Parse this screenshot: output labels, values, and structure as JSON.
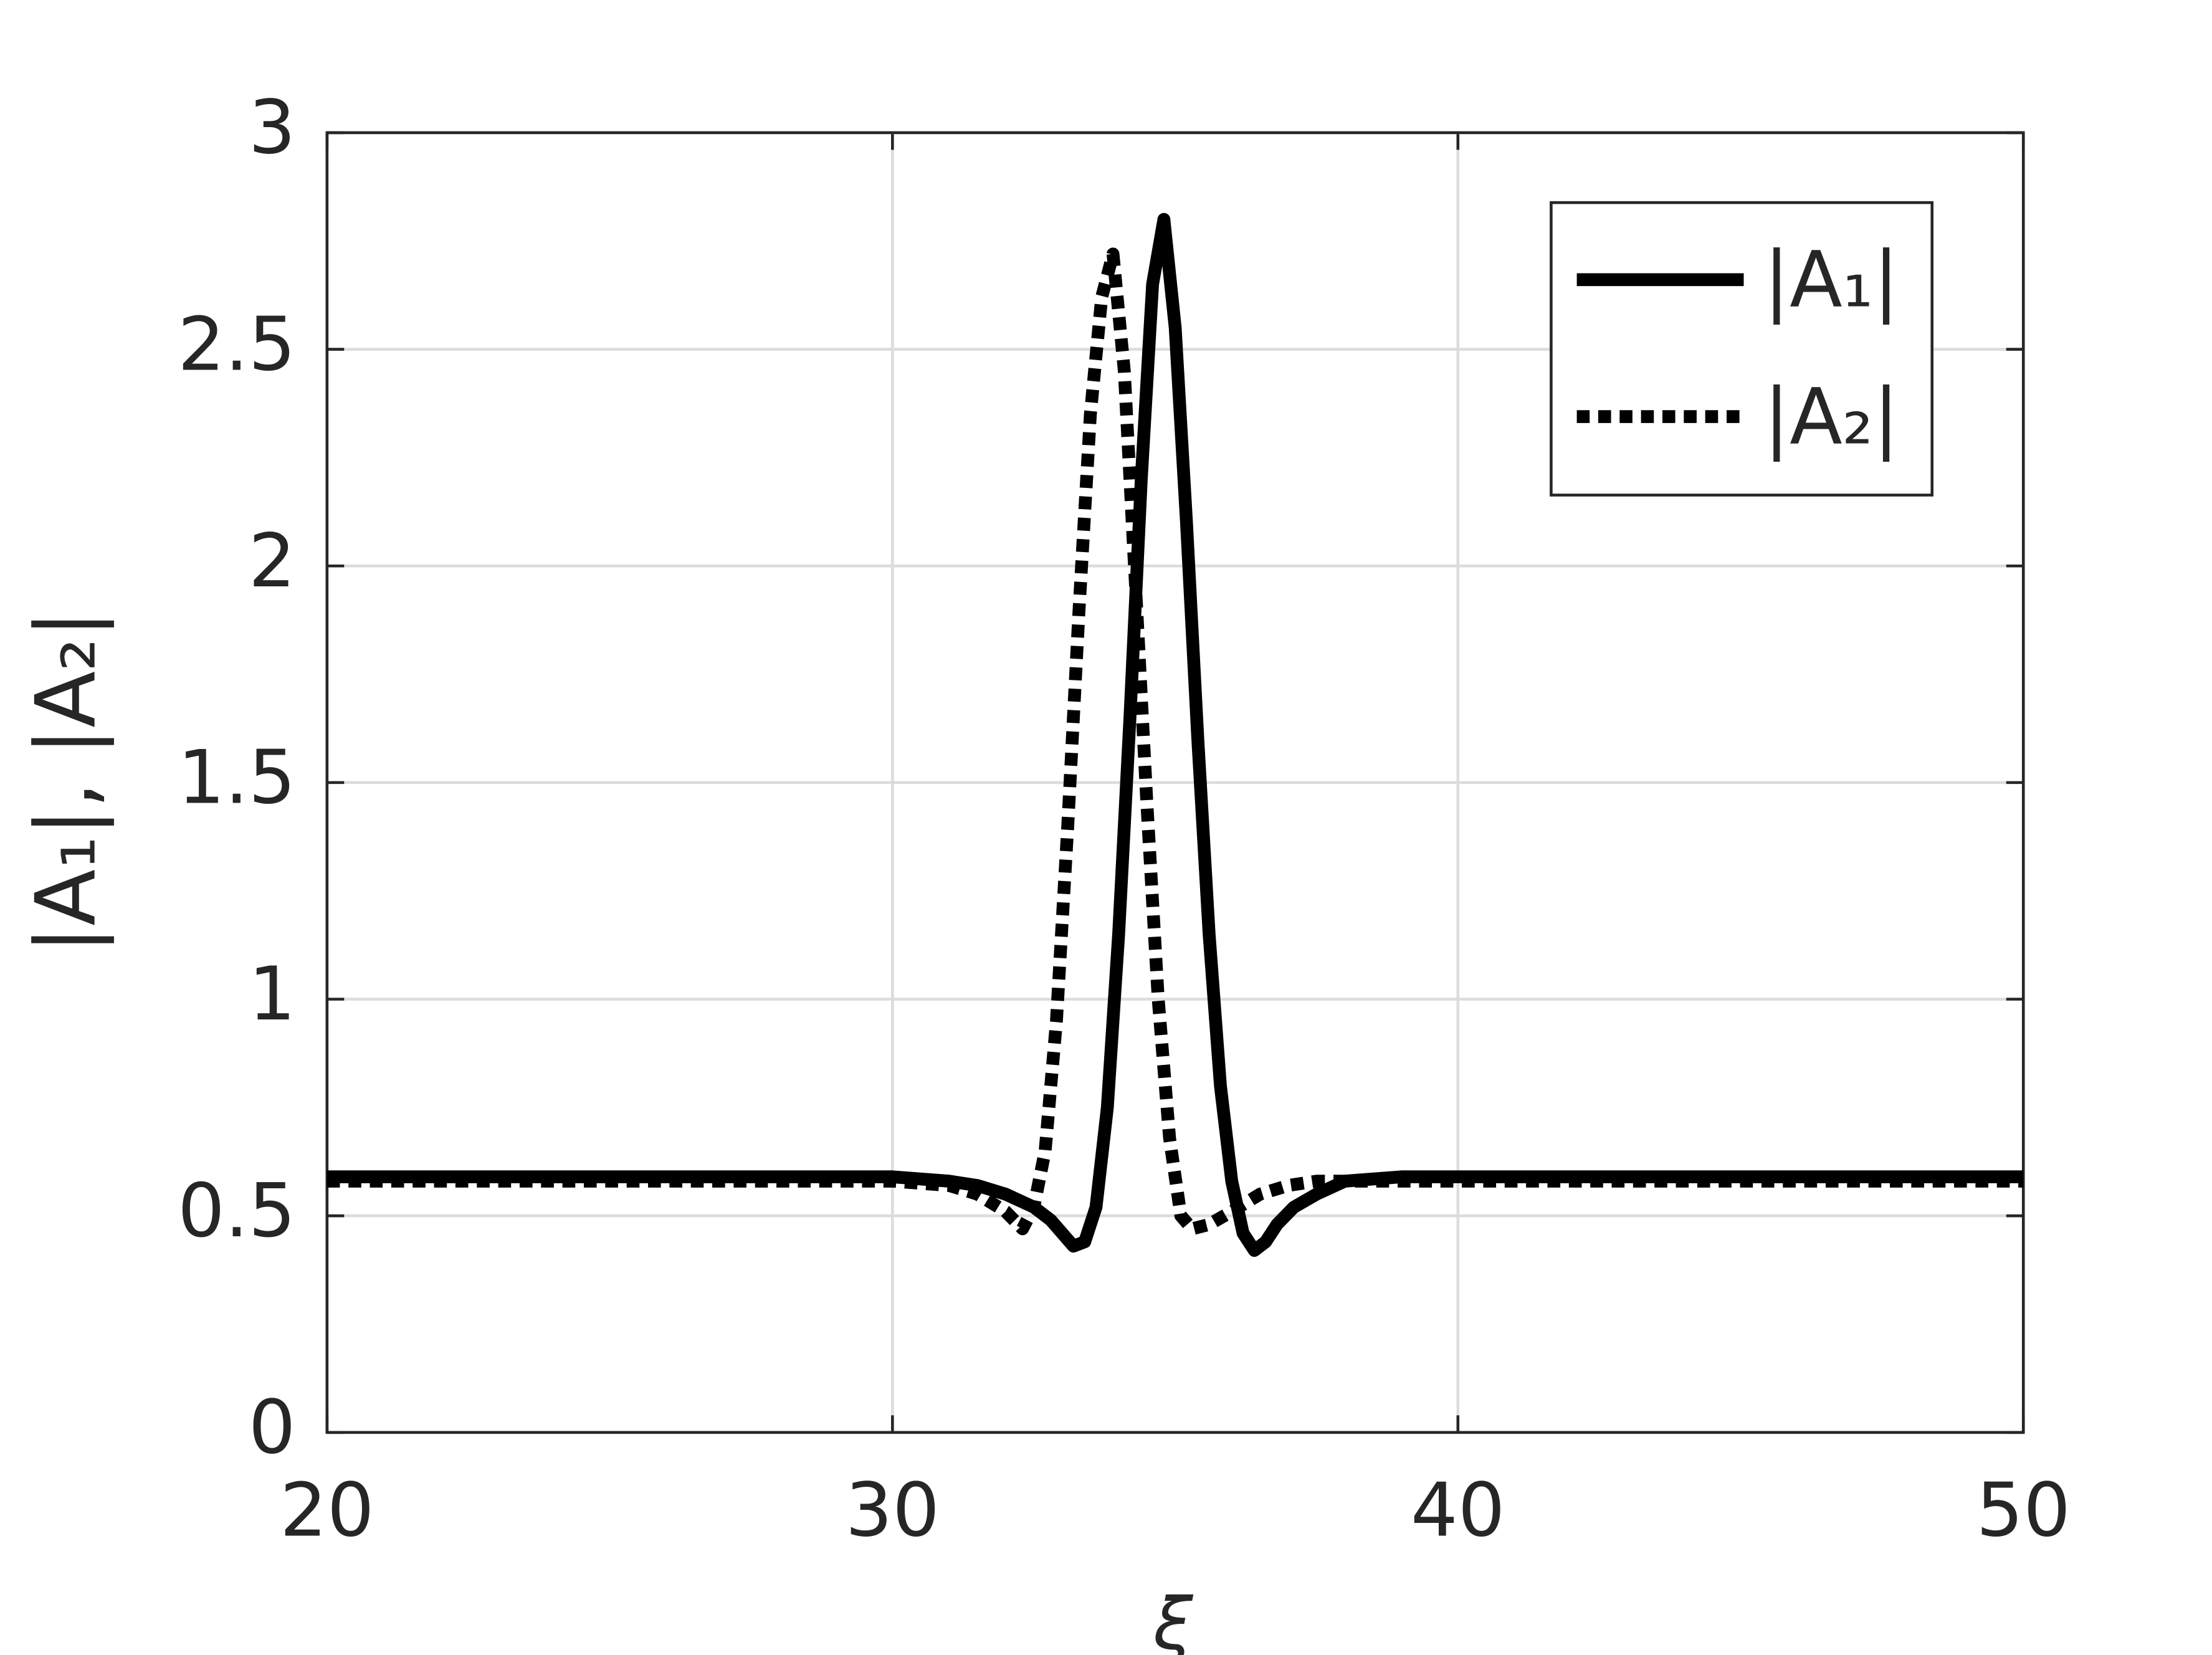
{
  "chart_data": {
    "type": "line",
    "xlabel": "ξ",
    "ylabel": "|A₁|, |A₂|",
    "xlim": [
      20,
      50
    ],
    "ylim": [
      0,
      3
    ],
    "xticks": [
      20,
      30,
      40,
      50
    ],
    "yticks": [
      0,
      0.5,
      1,
      1.5,
      2,
      2.5,
      3
    ],
    "grid": true,
    "legend": "upper right",
    "series": [
      {
        "name": "|A₁|",
        "color": "#000000",
        "dash": "solid",
        "x": [
          20,
          25,
          30,
          31,
          31.5,
          32,
          32.5,
          32.8,
          33,
          33.2,
          33.4,
          33.6,
          33.8,
          34,
          34.2,
          34.4,
          34.6,
          34.8,
          35,
          35.2,
          35.4,
          35.6,
          35.8,
          36,
          36.2,
          36.4,
          36.6,
          36.8,
          37.1,
          37.5,
          38,
          39,
          45,
          50
        ],
        "values": [
          0.59,
          0.59,
          0.59,
          0.58,
          0.57,
          0.55,
          0.52,
          0.49,
          0.46,
          0.43,
          0.44,
          0.52,
          0.75,
          1.15,
          1.65,
          2.2,
          2.65,
          2.8,
          2.55,
          2.1,
          1.6,
          1.15,
          0.8,
          0.58,
          0.46,
          0.42,
          0.44,
          0.48,
          0.52,
          0.55,
          0.58,
          0.59,
          0.59,
          0.59
        ]
      },
      {
        "name": "|A₂|",
        "color": "#000000",
        "dash": "dotted",
        "x": [
          20,
          25,
          30,
          31,
          31.5,
          32,
          32.3,
          32.5,
          32.7,
          32.9,
          33.1,
          33.3,
          33.5,
          33.7,
          33.9,
          34.1,
          34.3,
          34.5,
          34.7,
          34.9,
          35.1,
          35.3,
          35.6,
          36,
          36.5,
          37,
          37.5,
          38,
          45,
          50
        ],
        "values": [
          0.58,
          0.58,
          0.58,
          0.57,
          0.55,
          0.51,
          0.47,
          0.52,
          0.65,
          0.95,
          1.4,
          1.9,
          2.35,
          2.62,
          2.72,
          2.45,
          1.95,
          1.45,
          1.0,
          0.68,
          0.5,
          0.47,
          0.48,
          0.51,
          0.55,
          0.57,
          0.58,
          0.58,
          0.58,
          0.58
        ]
      }
    ]
  }
}
